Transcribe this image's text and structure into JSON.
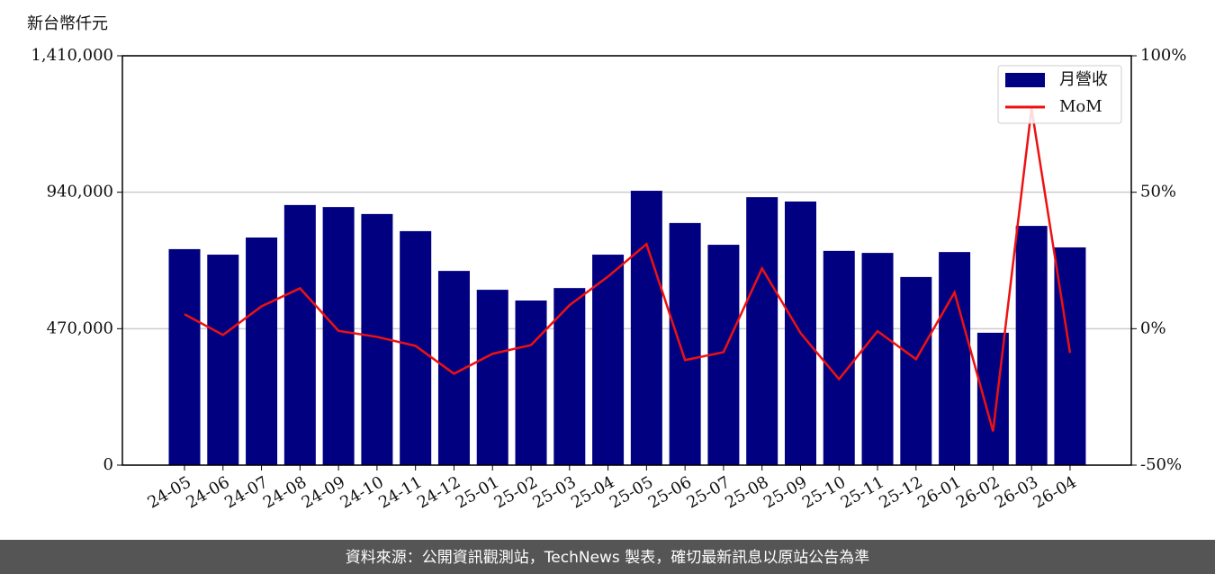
{
  "chart_data": {
    "type": "bar-line",
    "y_label": "新台幣仟元",
    "footer": "資料來源：公開資訊觀測站，TechNews 製表，確切最新訊息以原站公告為準",
    "categories": [
      "24-05",
      "24-06",
      "24-07",
      "24-08",
      "24-09",
      "24-10",
      "24-11",
      "24-12",
      "25-01",
      "25-02",
      "25-03",
      "25-04",
      "25-05",
      "25-06",
      "25-07",
      "25-08",
      "25-09",
      "25-10",
      "25-11",
      "25-12",
      "26-01",
      "26-02",
      "26-03",
      "26-04"
    ],
    "series": [
      {
        "name": "月營收",
        "type": "bar",
        "color": "#000080",
        "axis": "y",
        "values": [
          744000,
          725000,
          784000,
          896000,
          889000,
          865000,
          806000,
          669000,
          604000,
          567000,
          610000,
          725000,
          945000,
          834000,
          759000,
          923000,
          908000,
          738000,
          731000,
          648000,
          734000,
          456000,
          824000,
          750000
        ]
      },
      {
        "name": "MoM",
        "type": "line",
        "color": "#ee1111",
        "axis": "y2",
        "values": [
          5.3,
          -2.3,
          8.2,
          14.8,
          -0.8,
          -3.0,
          -6.3,
          -16.5,
          -9.2,
          -6.0,
          8.6,
          19.1,
          31.0,
          -11.5,
          -8.6,
          22.1,
          -1.6,
          -18.5,
          -0.9,
          -11.2,
          13.3,
          -37.6,
          80.7,
          -8.9
        ]
      }
    ],
    "ylim": [
      0,
      1410000
    ],
    "yticks": [
      0,
      {
        "value": 470000,
        "label": "470,000"
      },
      {
        "value": 940000,
        "label": "940,000"
      },
      {
        "value": 1410000,
        "label": "1,410,000"
      }
    ],
    "y2lim": [
      -50,
      100
    ],
    "y2ticks": [
      {
        "value": -50,
        "label": "-50%"
      },
      {
        "value": 0,
        "label": "0%"
      },
      {
        "value": 50,
        "label": "50%"
      },
      {
        "value": 100,
        "label": "100%"
      }
    ],
    "grid": true,
    "legend": "upper right"
  }
}
